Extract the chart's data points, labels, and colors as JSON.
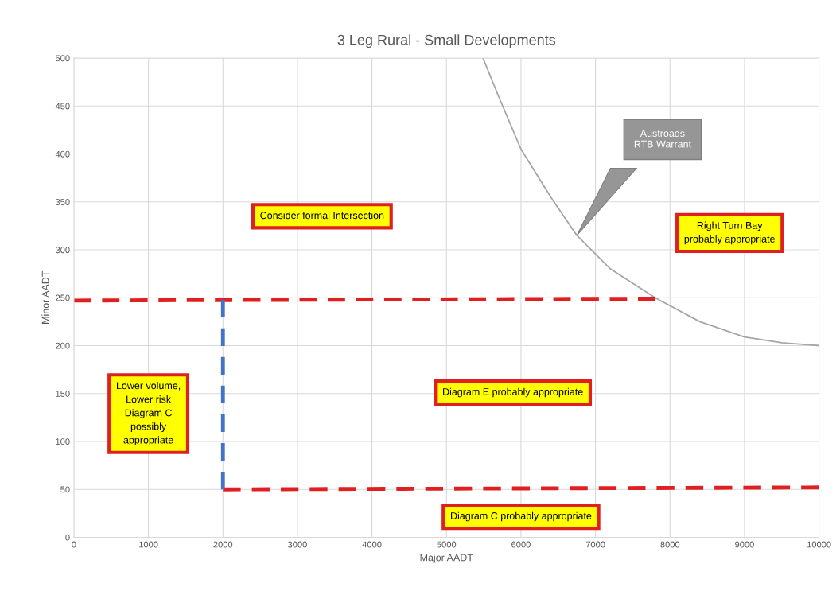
{
  "chart_data": {
    "type": "line",
    "title": "3 Leg Rural - Small Developments",
    "xlabel": "Major AADT",
    "ylabel": "Minor AADT",
    "xlim": [
      0,
      10000
    ],
    "ylim": [
      0,
      500
    ],
    "xticks": [
      0,
      1000,
      2000,
      3000,
      4000,
      5000,
      6000,
      7000,
      8000,
      9000,
      10000
    ],
    "yticks": [
      0,
      50,
      100,
      150,
      200,
      250,
      300,
      350,
      400,
      450,
      500
    ],
    "grid": true,
    "series": [
      {
        "color": "#a6a6a6",
        "line_style": "solid",
        "x": [
          5490,
          5700,
          6000,
          6400,
          6750,
          7200,
          7800,
          8400,
          9000,
          9500,
          10000
        ],
        "values": [
          500,
          460,
          405,
          355,
          315,
          280,
          250,
          225,
          209,
          203,
          200
        ]
      },
      {
        "color": "#e02020",
        "line_style": "dashed",
        "x": [
          0,
          7800
        ],
        "values": [
          247,
          249
        ]
      },
      {
        "color": "#e02020",
        "line_style": "dashed",
        "x": [
          2000,
          10000
        ],
        "values": [
          50,
          52
        ]
      },
      {
        "color": "#4472c4",
        "line_style": "dashed",
        "x": [
          2000,
          2000
        ],
        "values": [
          50,
          248
        ]
      }
    ],
    "annotations": [
      "Consider formal Intersection",
      "Right Turn Bay\nprobably appropriate",
      "Lower volume,\nLower risk\nDiagram C\npossibly\nappropriate",
      "Diagram E probably appropriate",
      "Diagram C probably appropriate",
      "Austroads\nRTB Warrant"
    ]
  }
}
